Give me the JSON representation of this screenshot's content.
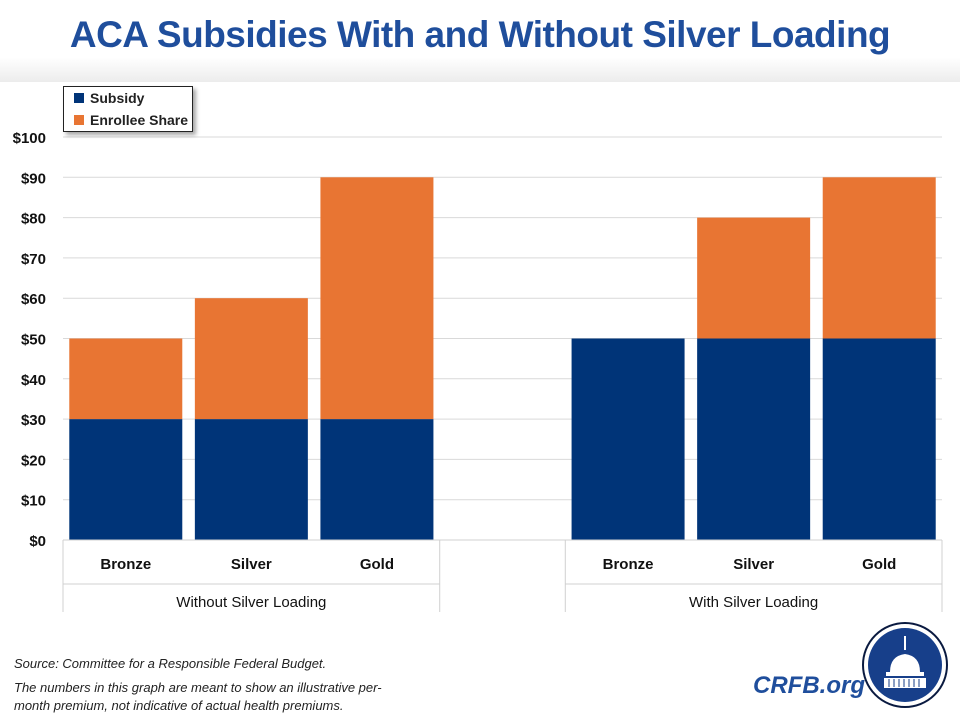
{
  "title": "ACA Subsidies With and Without Silver Loading",
  "chart_data": {
    "type": "bar",
    "stacked": true,
    "title": "ACA Subsidies With and Without Silver Loading",
    "groups": [
      "Without Silver Loading",
      "With Silver Loading"
    ],
    "categories": [
      "Bronze",
      "Silver",
      "Gold",
      "Bronze",
      "Silver",
      "Gold"
    ],
    "group_index": [
      0,
      0,
      0,
      1,
      1,
      1
    ],
    "series": [
      {
        "name": "Subsidy",
        "color": "#003478",
        "values": [
          30,
          30,
          30,
          50,
          50,
          50
        ]
      },
      {
        "name": "Enrollee Share",
        "color": "#e87533",
        "values": [
          20,
          30,
          60,
          0,
          30,
          40
        ]
      }
    ],
    "ylim": [
      0,
      100
    ],
    "yticks": [
      "$0",
      "$10",
      "$20",
      "$30",
      "$40",
      "$50",
      "$60",
      "$70",
      "$80",
      "$90",
      "$100"
    ],
    "grid": true,
    "legend": "top-left"
  },
  "footer": {
    "source": "Source: Committee for a Responsible Federal Budget.",
    "note_line1": "The numbers in this graph are meant to show an illustrative per-",
    "note_line2": "month premium, not indicative of actual health premiums."
  },
  "brand": {
    "site": "CRFB.org",
    "logo": "capitol-dome-seal"
  }
}
